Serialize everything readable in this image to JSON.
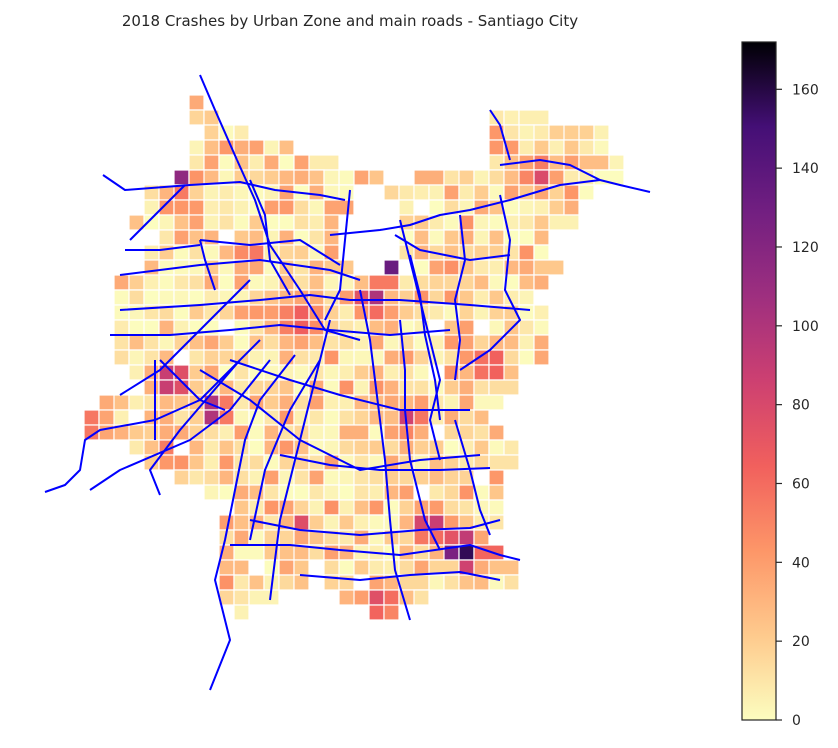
{
  "title": "2018 Crashes by Urban Zone and main roads - Santiago City",
  "chart_data": {
    "type": "choropleth",
    "title": "2018 Crashes by Urban Zone and main roads - Santiago City",
    "colormap": "magma_r",
    "colormap_stops": [
      "#fcfdbf",
      "#feca8d",
      "#fd9668",
      "#f1605d",
      "#cd4071",
      "#9e2f7f",
      "#721f81",
      "#440f76",
      "#000004"
    ],
    "value_range": [
      0,
      172
    ],
    "colorbar_ticks": [
      "0",
      "20",
      "40",
      "60",
      "80",
      "100",
      "120",
      "140",
      "160"
    ],
    "road_color": "#0000ff",
    "zone_edge_color": "#ffffff",
    "axes_visible": false
  }
}
